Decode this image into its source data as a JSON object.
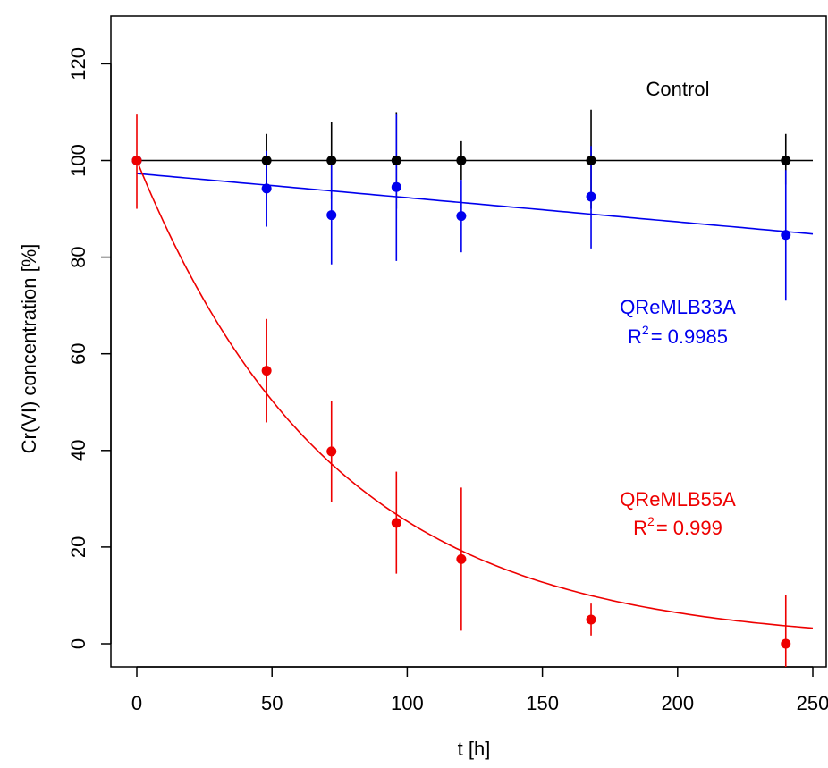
{
  "chart_data": {
    "type": "scatter",
    "title": "",
    "xlabel": "t [h]",
    "ylabel": "Cr(VI) concentration [%]",
    "xlim": [
      0,
      250
    ],
    "ylim": [
      0,
      120
    ],
    "x_ticks": [
      0,
      50,
      100,
      150,
      200,
      250
    ],
    "y_ticks": [
      0,
      20,
      40,
      60,
      80,
      100,
      120
    ],
    "grid": false,
    "series": [
      {
        "name": "Control",
        "color": "#000000",
        "x": [
          0,
          48,
          72,
          96,
          120,
          168,
          240
        ],
        "y": [
          100,
          100,
          100,
          100,
          100,
          100,
          100
        ],
        "err_low": [
          100,
          94.5,
          92,
          90,
          96,
          90,
          95
        ],
        "err_high": [
          100,
          105.5,
          108,
          110,
          104,
          110.5,
          105.5
        ],
        "fit": {
          "kind": "linear",
          "intercept": 100,
          "slope": 0
        }
      },
      {
        "name": "QReMLB33A",
        "color": "#0000ee",
        "x": [
          0,
          48,
          72,
          96,
          120,
          168,
          240
        ],
        "y": [
          100,
          94.2,
          88.7,
          94.5,
          88.5,
          92.5,
          84.6
        ],
        "err_low": [
          100,
          86.3,
          78.5,
          79.2,
          81,
          81.8,
          71
        ],
        "err_high": [
          100,
          102,
          99,
          109.5,
          96,
          103,
          98
        ],
        "fit": {
          "kind": "linear",
          "intercept": 97.3,
          "slope": -0.05
        }
      },
      {
        "name": "QReMLB55A",
        "color": "#ee0000",
        "x": [
          0,
          48,
          72,
          96,
          120,
          168,
          240
        ],
        "y": [
          100,
          56.5,
          39.8,
          25,
          17.5,
          5,
          0
        ],
        "err_low": [
          90,
          45.8,
          29.3,
          14.5,
          2.7,
          1.7,
          -6
        ],
        "err_high": [
          109.5,
          67.2,
          50.3,
          35.6,
          32.3,
          8.3,
          10
        ],
        "fit": {
          "kind": "exp",
          "a": 100,
          "k": 0.01373
        }
      }
    ],
    "annotations": [
      {
        "series": "Control",
        "lines": [
          "Control"
        ],
        "x": 200,
        "y": 103
      },
      {
        "series": "QReMLB33A",
        "lines": [
          "QReMLB33A",
          "R",
          "2",
          "= 0.9985"
        ],
        "x": 200,
        "y": 67
      },
      {
        "series": "QReMLB55A",
        "lines": [
          "QReMLB55A",
          "R",
          "2",
          "= 0.999"
        ],
        "x": 200,
        "y": 28
      }
    ]
  }
}
